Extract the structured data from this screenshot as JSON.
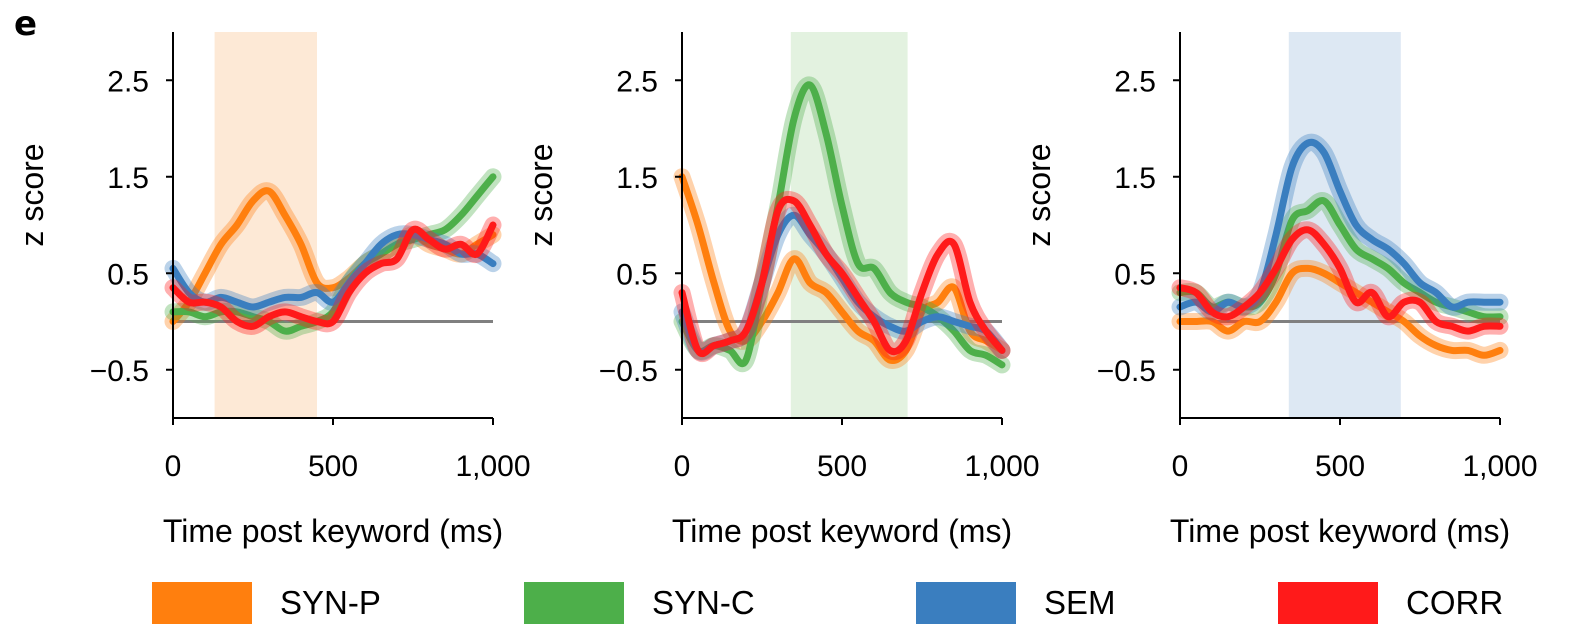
{
  "figure_label": "e",
  "chart_data": [
    {
      "type": "line",
      "xlabel": "Time post keyword (ms)",
      "ylabel": "z score",
      "xlim": [
        0,
        1000
      ],
      "ylim": [
        -1,
        3
      ],
      "xticks": [
        0,
        500,
        1000
      ],
      "xtick_labels": [
        "0",
        "500",
        "1,000"
      ],
      "yticks": [
        -0.5,
        0.5,
        1.5,
        2.5
      ],
      "ytick_labels": [
        "−0.5",
        "0.5",
        "1.5",
        "2.5"
      ],
      "baseline": 0,
      "highlight": {
        "start": 130,
        "end": 450,
        "color": "#fde9d6"
      },
      "series": [
        {
          "name": "SYN-P",
          "color": "#ff7f0e",
          "x": [
            0,
            50,
            100,
            150,
            200,
            250,
            300,
            350,
            400,
            450,
            500,
            550,
            600,
            650,
            700,
            750,
            800,
            850,
            900,
            950,
            1000
          ],
          "y": [
            0.0,
            0.2,
            0.5,
            0.8,
            1.0,
            1.25,
            1.35,
            1.1,
            0.8,
            0.4,
            0.35,
            0.45,
            0.6,
            0.7,
            0.8,
            0.9,
            0.8,
            0.75,
            0.7,
            0.8,
            0.9
          ]
        },
        {
          "name": "SYN-C",
          "color": "#4daf4a",
          "x": [
            0,
            50,
            100,
            150,
            200,
            250,
            300,
            350,
            400,
            450,
            500,
            550,
            600,
            650,
            700,
            750,
            800,
            850,
            900,
            950,
            1000
          ],
          "y": [
            0.1,
            0.1,
            0.05,
            0.1,
            0.1,
            0.05,
            0.0,
            -0.1,
            -0.05,
            0.0,
            0.1,
            0.4,
            0.6,
            0.7,
            0.8,
            0.85,
            0.9,
            0.95,
            1.1,
            1.3,
            1.5
          ]
        },
        {
          "name": "SEM",
          "color": "#3a7ebf",
          "x": [
            0,
            50,
            100,
            150,
            200,
            250,
            300,
            350,
            400,
            450,
            500,
            550,
            600,
            650,
            700,
            750,
            800,
            850,
            900,
            950,
            1000
          ],
          "y": [
            0.55,
            0.3,
            0.2,
            0.25,
            0.2,
            0.15,
            0.2,
            0.25,
            0.25,
            0.3,
            0.2,
            0.4,
            0.6,
            0.8,
            0.9,
            0.9,
            0.85,
            0.8,
            0.7,
            0.7,
            0.6
          ]
        },
        {
          "name": "CORR",
          "color": "#ff1a1a",
          "x": [
            0,
            50,
            100,
            150,
            200,
            250,
            300,
            350,
            400,
            450,
            500,
            550,
            600,
            650,
            700,
            750,
            800,
            850,
            900,
            950,
            1000
          ],
          "y": [
            0.35,
            0.2,
            0.2,
            0.15,
            0.0,
            -0.05,
            0.05,
            0.1,
            0.05,
            0.0,
            0.0,
            0.3,
            0.5,
            0.6,
            0.65,
            0.95,
            0.85,
            0.75,
            0.8,
            0.7,
            1.0
          ]
        }
      ]
    },
    {
      "type": "line",
      "xlabel": "Time post keyword (ms)",
      "ylabel": "z score",
      "xlim": [
        0,
        1000
      ],
      "ylim": [
        -1,
        3
      ],
      "xticks": [
        0,
        500,
        1000
      ],
      "xtick_labels": [
        "0",
        "500",
        "1,000"
      ],
      "yticks": [
        -0.5,
        0.5,
        1.5,
        2.5
      ],
      "ytick_labels": [
        "−0.5",
        "0.5",
        "1.5",
        "2.5"
      ],
      "baseline": 0,
      "highlight": {
        "start": 340,
        "end": 705,
        "color": "#e3f2e0"
      },
      "series": [
        {
          "name": "SYN-P",
          "color": "#ff7f0e",
          "x": [
            0,
            50,
            100,
            150,
            200,
            250,
            300,
            350,
            400,
            450,
            500,
            550,
            600,
            650,
            700,
            750,
            800,
            850,
            900,
            950,
            1000
          ],
          "y": [
            1.5,
            1.0,
            0.4,
            -0.1,
            -0.2,
            0.0,
            0.3,
            0.65,
            0.4,
            0.3,
            0.1,
            -0.1,
            -0.2,
            -0.4,
            -0.3,
            0.1,
            0.2,
            0.35,
            -0.1,
            -0.2,
            -0.3
          ]
        },
        {
          "name": "SYN-C",
          "color": "#4daf4a",
          "x": [
            0,
            50,
            100,
            150,
            200,
            250,
            300,
            350,
            400,
            450,
            500,
            550,
            600,
            650,
            700,
            750,
            800,
            850,
            900,
            950,
            1000
          ],
          "y": [
            0.0,
            -0.3,
            -0.25,
            -0.3,
            -0.4,
            0.4,
            1.2,
            2.1,
            2.45,
            1.95,
            1.2,
            0.6,
            0.55,
            0.3,
            0.2,
            0.15,
            0.05,
            -0.1,
            -0.3,
            -0.35,
            -0.45
          ]
        },
        {
          "name": "SEM",
          "color": "#3a7ebf",
          "x": [
            0,
            50,
            100,
            150,
            200,
            250,
            300,
            350,
            400,
            450,
            500,
            550,
            600,
            650,
            700,
            750,
            800,
            850,
            900,
            950,
            1000
          ],
          "y": [
            0.1,
            -0.3,
            -0.25,
            -0.2,
            -0.1,
            0.4,
            0.9,
            1.1,
            0.9,
            0.7,
            0.45,
            0.2,
            0.05,
            -0.05,
            -0.1,
            0.0,
            0.05,
            0.0,
            -0.05,
            -0.1,
            -0.3
          ]
        },
        {
          "name": "CORR",
          "color": "#ff1a1a",
          "x": [
            0,
            50,
            100,
            150,
            200,
            250,
            300,
            350,
            400,
            450,
            500,
            550,
            600,
            650,
            700,
            750,
            800,
            850,
            900,
            950,
            1000
          ],
          "y": [
            0.3,
            -0.3,
            -0.25,
            -0.2,
            -0.1,
            0.4,
            1.15,
            1.25,
            1.0,
            0.7,
            0.5,
            0.25,
            0.0,
            -0.3,
            -0.2,
            0.3,
            0.7,
            0.8,
            0.2,
            -0.1,
            -0.3
          ]
        }
      ]
    },
    {
      "type": "line",
      "xlabel": "Time post keyword (ms)",
      "ylabel": "z score",
      "xlim": [
        0,
        1000
      ],
      "ylim": [
        -1,
        3
      ],
      "xticks": [
        0,
        500,
        1000
      ],
      "xtick_labels": [
        "0",
        "500",
        "1,000"
      ],
      "yticks": [
        -0.5,
        0.5,
        1.5,
        2.5
      ],
      "ytick_labels": [
        "−0.5",
        "0.5",
        "1.5",
        "2.5"
      ],
      "baseline": 0,
      "highlight": {
        "start": 340,
        "end": 690,
        "color": "#dde8f3"
      },
      "series": [
        {
          "name": "SYN-P",
          "color": "#ff7f0e",
          "x": [
            0,
            50,
            100,
            150,
            200,
            250,
            300,
            350,
            400,
            450,
            500,
            550,
            600,
            650,
            700,
            750,
            800,
            850,
            900,
            950,
            1000
          ],
          "y": [
            0.0,
            0.0,
            0.0,
            -0.1,
            0.0,
            0.0,
            0.2,
            0.5,
            0.55,
            0.5,
            0.4,
            0.3,
            0.2,
            0.1,
            0.0,
            -0.15,
            -0.25,
            -0.3,
            -0.3,
            -0.35,
            -0.3
          ]
        },
        {
          "name": "SYN-C",
          "color": "#4daf4a",
          "x": [
            0,
            50,
            100,
            150,
            200,
            250,
            300,
            350,
            400,
            450,
            500,
            550,
            600,
            650,
            700,
            750,
            800,
            850,
            900,
            950,
            1000
          ],
          "y": [
            0.3,
            0.3,
            0.15,
            0.2,
            0.15,
            0.2,
            0.5,
            1.05,
            1.15,
            1.25,
            1.0,
            0.75,
            0.65,
            0.55,
            0.4,
            0.3,
            0.2,
            0.15,
            0.1,
            0.05,
            0.05
          ]
        },
        {
          "name": "SEM",
          "color": "#3a7ebf",
          "x": [
            0,
            50,
            100,
            150,
            200,
            250,
            300,
            350,
            400,
            450,
            500,
            550,
            600,
            650,
            700,
            750,
            800,
            850,
            900,
            950,
            1000
          ],
          "y": [
            0.15,
            0.2,
            0.1,
            0.2,
            0.15,
            0.3,
            0.9,
            1.6,
            1.85,
            1.75,
            1.35,
            1.0,
            0.85,
            0.75,
            0.6,
            0.4,
            0.3,
            0.15,
            0.2,
            0.2,
            0.2
          ]
        },
        {
          "name": "CORR",
          "color": "#ff1a1a",
          "x": [
            0,
            50,
            100,
            150,
            200,
            250,
            300,
            350,
            400,
            450,
            500,
            550,
            600,
            650,
            700,
            750,
            800,
            850,
            900,
            950,
            1000
          ],
          "y": [
            0.35,
            0.3,
            0.1,
            0.05,
            0.15,
            0.3,
            0.55,
            0.85,
            0.95,
            0.8,
            0.55,
            0.2,
            0.3,
            0.05,
            0.2,
            0.2,
            0.0,
            -0.05,
            -0.1,
            -0.05,
            -0.05
          ]
        }
      ]
    }
  ],
  "legend": [
    {
      "label": "SYN-P",
      "color": "#ff7f0e"
    },
    {
      "label": "SYN-C",
      "color": "#4daf4a"
    },
    {
      "label": "SEM",
      "color": "#3a7ebf"
    },
    {
      "label": "CORR",
      "color": "#ff1a1a"
    }
  ]
}
